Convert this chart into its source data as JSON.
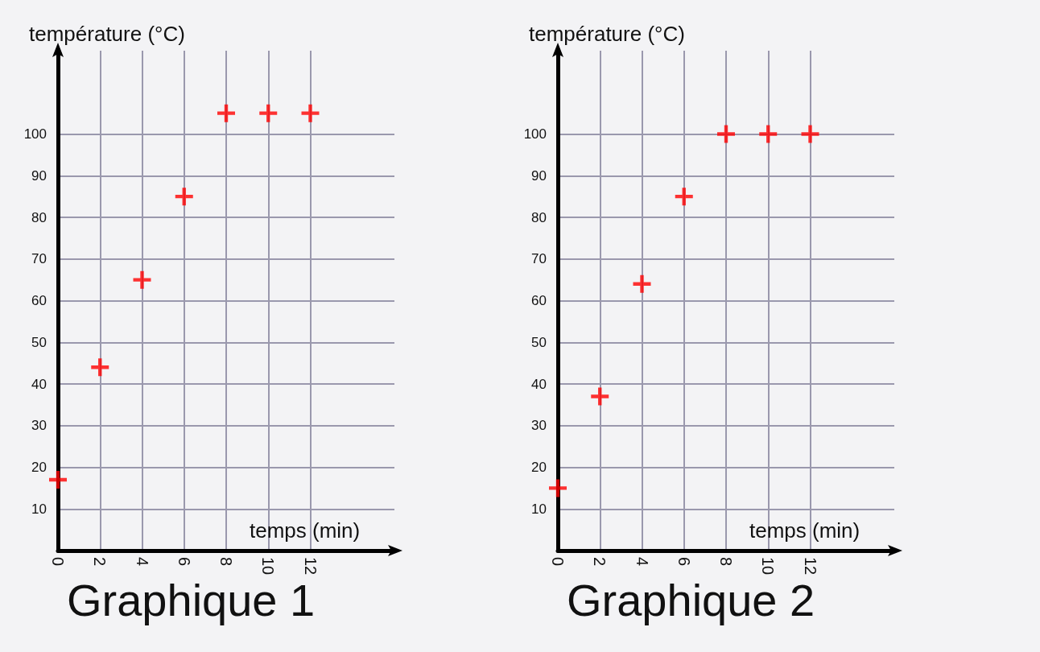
{
  "chart_data": [
    {
      "type": "scatter",
      "title": "Graphique 1",
      "xlabel": "temps (min)",
      "ylabel": "température (°C)",
      "x": [
        0,
        2,
        4,
        6,
        8,
        10,
        12
      ],
      "values": [
        17,
        44,
        65,
        85,
        105,
        105,
        105
      ],
      "color": "#ff0000",
      "marker": "cross",
      "xlim": [
        0,
        16
      ],
      "ylim": [
        0,
        120
      ],
      "xticks": [
        0,
        2,
        4,
        6,
        8,
        10,
        12
      ],
      "yticks": [
        10,
        20,
        30,
        40,
        50,
        60,
        70,
        80,
        90,
        100
      ],
      "grid": true
    },
    {
      "type": "scatter",
      "title": "Graphique 2",
      "xlabel": "temps (min)",
      "ylabel": "température (°C)",
      "x": [
        0,
        2,
        4,
        6,
        8,
        10,
        12
      ],
      "values": [
        15,
        37,
        64,
        85,
        100,
        100,
        100
      ],
      "color": "#ff0000",
      "marker": "cross",
      "xlim": [
        0,
        16
      ],
      "ylim": [
        0,
        120
      ],
      "xticks": [
        0,
        2,
        4,
        6,
        8,
        10,
        12
      ],
      "yticks": [
        10,
        20,
        30,
        40,
        50,
        60,
        70,
        80,
        90,
        100
      ],
      "grid": true
    }
  ]
}
